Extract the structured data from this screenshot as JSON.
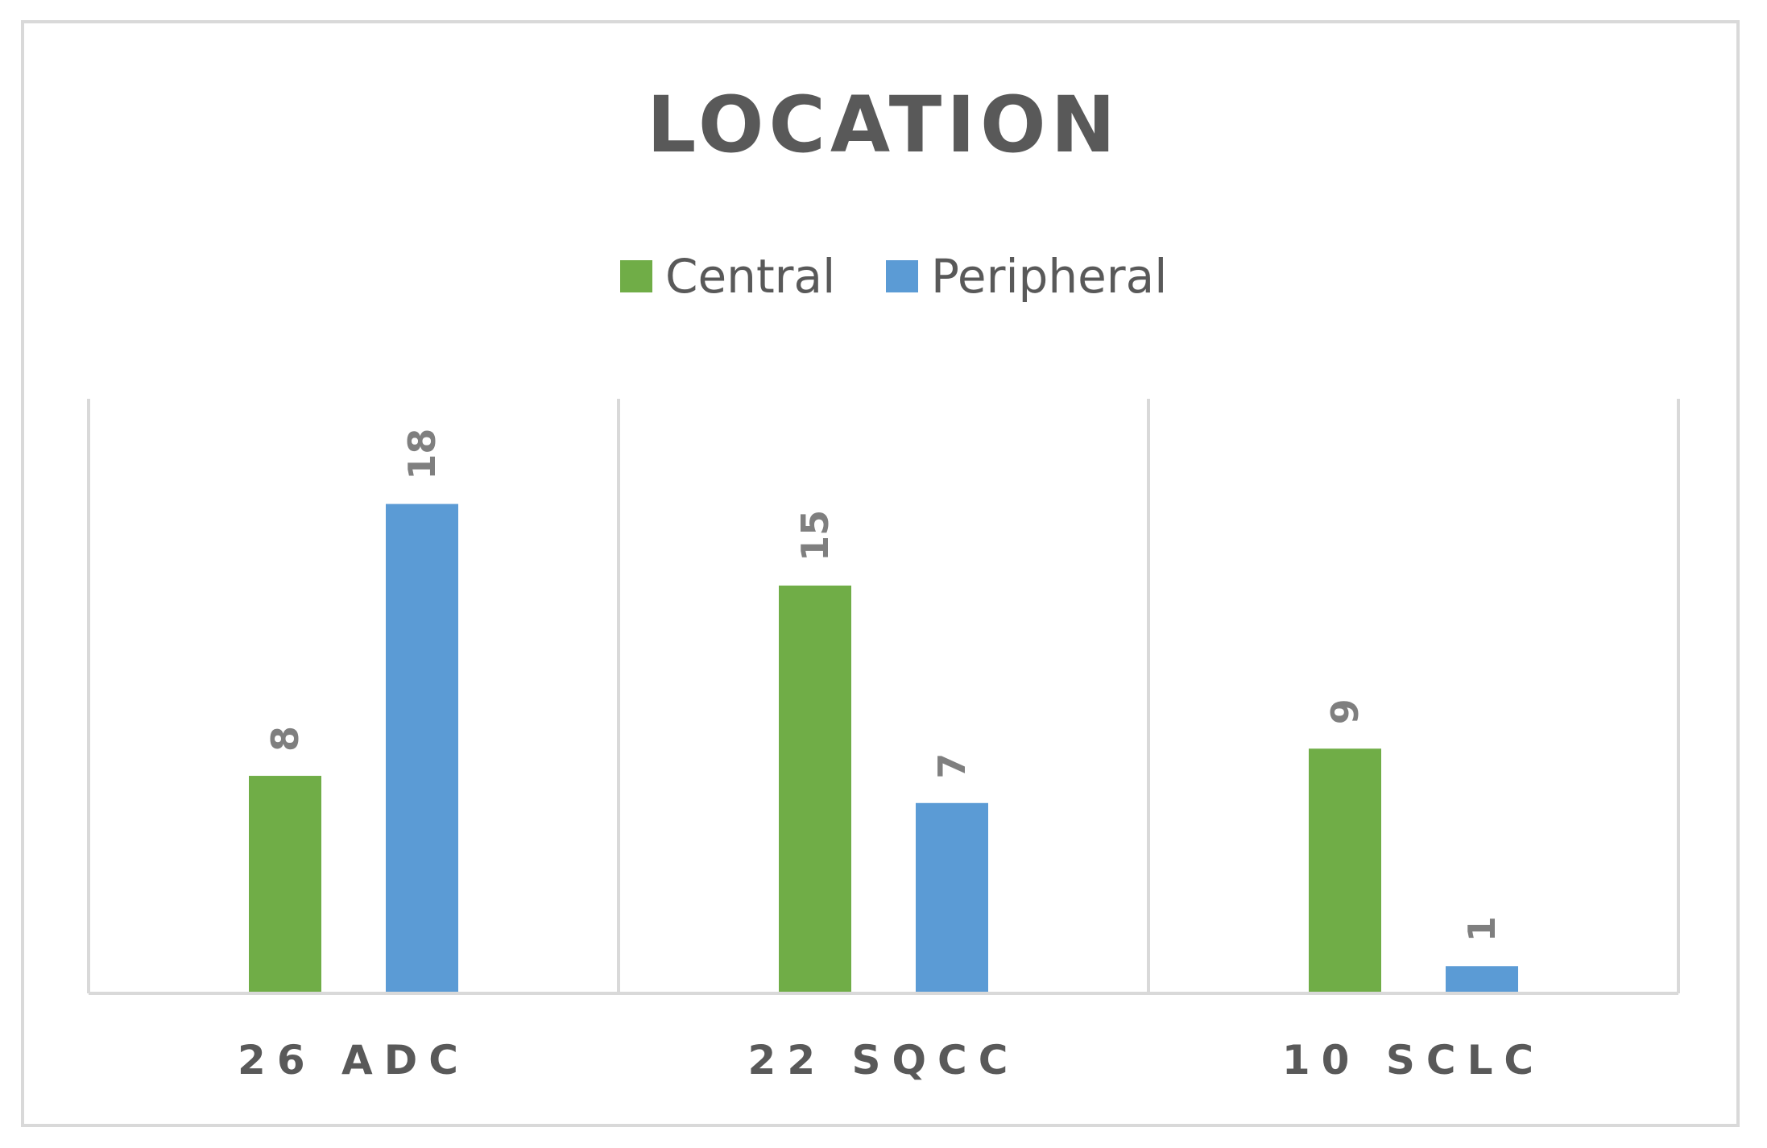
{
  "chart_data": {
    "type": "bar",
    "title": "LOCATION",
    "categories": [
      "26 ADC",
      "22 SQCC",
      "10 SCLC"
    ],
    "series": [
      {
        "name": "Central",
        "color": "#70ad47",
        "values": [
          8,
          15,
          9
        ]
      },
      {
        "name": "Peripheral",
        "color": "#5b9bd5",
        "values": [
          18,
          7,
          1
        ]
      }
    ],
    "ylim": [
      0,
      20
    ],
    "legend_position": "top",
    "grid": "vertical category separators",
    "data_labels": "rotated, above bars"
  }
}
